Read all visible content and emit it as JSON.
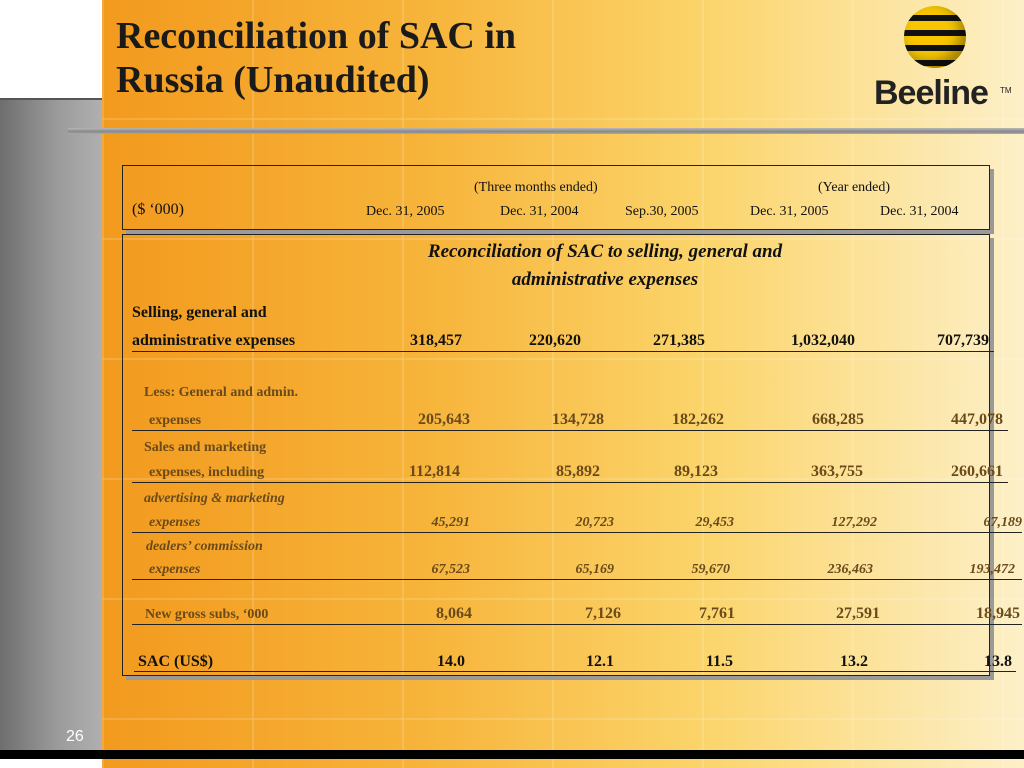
{
  "slide": {
    "title_line1": "Reconciliation of SAC in",
    "title_line2": "Russia (Unaudited)",
    "page_number": "26",
    "logo_text": "Beeline",
    "logo_tm": "TM"
  },
  "table": {
    "units": "($ ‘000)",
    "group_three_months": "(Three months ended)",
    "group_year": "(Year ended)",
    "columns": [
      "Dec. 31, 2005",
      "Dec. 31, 2004",
      "Sep.30, 2005",
      "Dec. 31, 2005",
      "Dec. 31, 2004"
    ],
    "section_title_line1": "Reconciliation of SAC to selling, general and",
    "section_title_line2": "administrative expenses",
    "rows": [
      {
        "label1": "Selling, general and",
        "label2": "administrative expenses",
        "values": [
          "318,457",
          "220,620",
          "271,385",
          "1,032,040",
          "707,739"
        ]
      },
      {
        "label1": "Less: General and admin.",
        "label2": "expenses",
        "values": [
          "205,643",
          "134,728",
          "182,262",
          "668,285",
          "447,078"
        ]
      },
      {
        "label1": "Sales and marketing",
        "label2": "expenses, including",
        "values": [
          "112,814",
          "85,892",
          "89,123",
          "363,755",
          "260,661"
        ]
      },
      {
        "label1": "advertising & marketing",
        "label2": "expenses",
        "values": [
          "45,291",
          "20,723",
          "29,453",
          "127,292",
          "67,189"
        ]
      },
      {
        "label1": "dealers’ commission",
        "label2": "expenses",
        "values": [
          "67,523",
          "65,169",
          "59,670",
          "236,463",
          "193,472"
        ]
      },
      {
        "label1": "New gross subs, ‘000",
        "values": [
          "8,064",
          "7,126",
          "7,761",
          "27,591",
          "18,945"
        ]
      },
      {
        "label1": "SAC (US$)",
        "values": [
          "14.0",
          "12.1",
          "11.5",
          "13.2",
          "13.8"
        ]
      }
    ]
  }
}
